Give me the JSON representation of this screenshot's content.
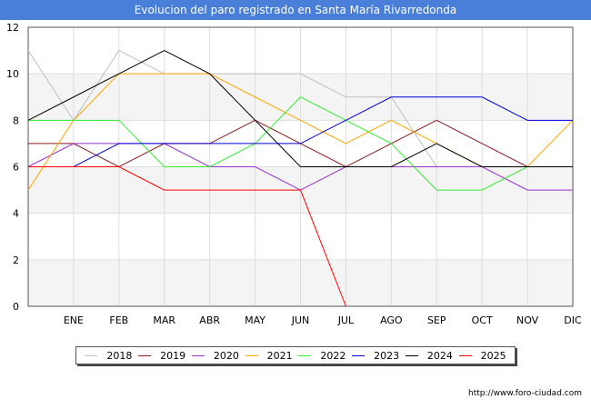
{
  "title": "Evolucion del paro registrado en Santa María Rivarredonda",
  "source": "http://www.foro-ciudad.com",
  "chart_data": {
    "type": "line",
    "title": "Evolucion del paro registrado en Santa María Rivarredonda",
    "xlabel": "",
    "ylabel": "",
    "x": [
      "",
      "ENE",
      "FEB",
      "MAR",
      "ABR",
      "MAY",
      "JUN",
      "JUL",
      "AGO",
      "SEP",
      "OCT",
      "NOV",
      "DIC"
    ],
    "yticks": [
      0,
      2,
      4,
      6,
      8,
      10,
      12
    ],
    "ylim": [
      0,
      12
    ],
    "grid": true,
    "legend_position": "bottom",
    "series": [
      {
        "name": "2018",
        "color": "#c0c0c0",
        "values": [
          11,
          8,
          11,
          10,
          10,
          10,
          10,
          9,
          9,
          6,
          6,
          6,
          6
        ]
      },
      {
        "name": "2019",
        "color": "#8b1a1a",
        "values": [
          7,
          7,
          6,
          7,
          7,
          8,
          7,
          6,
          7,
          8,
          7,
          6,
          6
        ]
      },
      {
        "name": "2020",
        "color": "#9a32cd",
        "values": [
          6,
          7,
          7,
          7,
          6,
          6,
          5,
          6,
          6,
          6,
          6,
          5,
          5
        ]
      },
      {
        "name": "2021",
        "color": "#ffa500",
        "values": [
          5,
          8,
          10,
          10,
          10,
          9,
          8,
          7,
          8,
          7,
          6,
          6,
          8
        ]
      },
      {
        "name": "2022",
        "color": "#33ee33",
        "values": [
          8,
          8,
          8,
          6,
          6,
          7,
          9,
          8,
          7,
          5,
          5,
          6,
          6
        ]
      },
      {
        "name": "2023",
        "color": "#0000dd",
        "values": [
          6,
          6,
          7,
          7,
          7,
          7,
          7,
          8,
          9,
          9,
          9,
          8,
          8
        ]
      },
      {
        "name": "2024",
        "color": "#000000",
        "values": [
          8,
          9,
          10,
          11,
          10,
          8,
          6,
          6,
          6,
          7,
          6,
          6,
          6
        ]
      },
      {
        "name": "2025",
        "color": "#ff0000",
        "values": [
          6,
          6,
          6,
          5,
          5,
          5,
          5,
          0,
          null,
          null,
          null,
          null,
          null
        ]
      }
    ]
  }
}
